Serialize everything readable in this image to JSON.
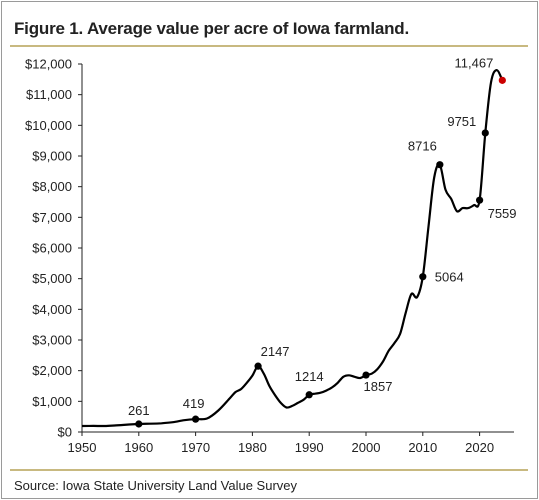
{
  "title": "Figure 1. Average value per acre of Iowa farmland.",
  "source": "Source: Iowa State University Land Value Survey",
  "chart_data": {
    "type": "line",
    "title": "Figure 1. Average value per acre of Iowa farmland.",
    "xlabel": "",
    "ylabel": "",
    "xlim": [
      1950,
      2025
    ],
    "ylim": [
      0,
      12000
    ],
    "x_ticks": [
      "1950",
      "1960",
      "1970",
      "1980",
      "1990",
      "2000",
      "2010",
      "2020"
    ],
    "y_ticks": [
      "$0",
      "$1,000",
      "$2,000",
      "$3,000",
      "$4,000",
      "$5,000",
      "$6,000",
      "$7,000",
      "$8,000",
      "$9,000",
      "$10,000",
      "$11,000",
      "$12,000"
    ],
    "grid": false,
    "line_color": "#000000",
    "series": [
      {
        "x": [
          1950,
          1952,
          1954,
          1956,
          1958,
          1960,
          1962,
          1964,
          1966,
          1968,
          1970,
          1972,
          1974,
          1976,
          1977,
          1978,
          1979,
          1980,
          1981,
          1982,
          1983,
          1984,
          1985,
          1986,
          1987,
          1988,
          1989,
          1990,
          1991,
          1992,
          1993,
          1994,
          1995,
          1996,
          1997,
          1998,
          1999,
          2000,
          2001,
          2002,
          2003,
          2004,
          2005,
          2006,
          2007,
          2008,
          2009,
          2010,
          2011,
          2012,
          2013,
          2014,
          2015,
          2016,
          2017,
          2018,
          2019,
          2020,
          2021,
          2022,
          2023,
          2024
        ],
        "y": [
          195,
          200,
          195,
          215,
          240,
          261,
          270,
          285,
          320,
          385,
          419,
          440,
          700,
          1095,
          1300,
          1400,
          1600,
          1840,
          2147,
          1900,
          1500,
          1200,
          950,
          800,
          850,
          950,
          1050,
          1214,
          1250,
          1280,
          1350,
          1450,
          1600,
          1800,
          1850,
          1800,
          1760,
          1857,
          1900,
          2050,
          2300,
          2650,
          2900,
          3200,
          3900,
          4500,
          4400,
          5064,
          6700,
          8300,
          8716,
          7900,
          7600,
          7200,
          7300,
          7300,
          7400,
          7559,
          9751,
          11400,
          11800,
          11467
        ]
      }
    ],
    "labeled_points": [
      {
        "x": 1960,
        "y": 261,
        "label": "261",
        "color": "#000000"
      },
      {
        "x": 1970,
        "y": 419,
        "label": "419",
        "color": "#000000"
      },
      {
        "x": 1981,
        "y": 2147,
        "label": "2147",
        "color": "#000000"
      },
      {
        "x": 1990,
        "y": 1214,
        "label": "1214",
        "color": "#000000"
      },
      {
        "x": 2000,
        "y": 1857,
        "label": "1857",
        "color": "#000000"
      },
      {
        "x": 2010,
        "y": 5064,
        "label": "5064",
        "color": "#000000"
      },
      {
        "x": 2013,
        "y": 8716,
        "label": "8716",
        "color": "#000000"
      },
      {
        "x": 2020,
        "y": 7559,
        "label": "7559",
        "color": "#000000"
      },
      {
        "x": 2021,
        "y": 9751,
        "label": "9751",
        "color": "#000000"
      },
      {
        "x": 2024,
        "y": 11467,
        "label": "11,467",
        "color": "#cc0000"
      }
    ]
  }
}
